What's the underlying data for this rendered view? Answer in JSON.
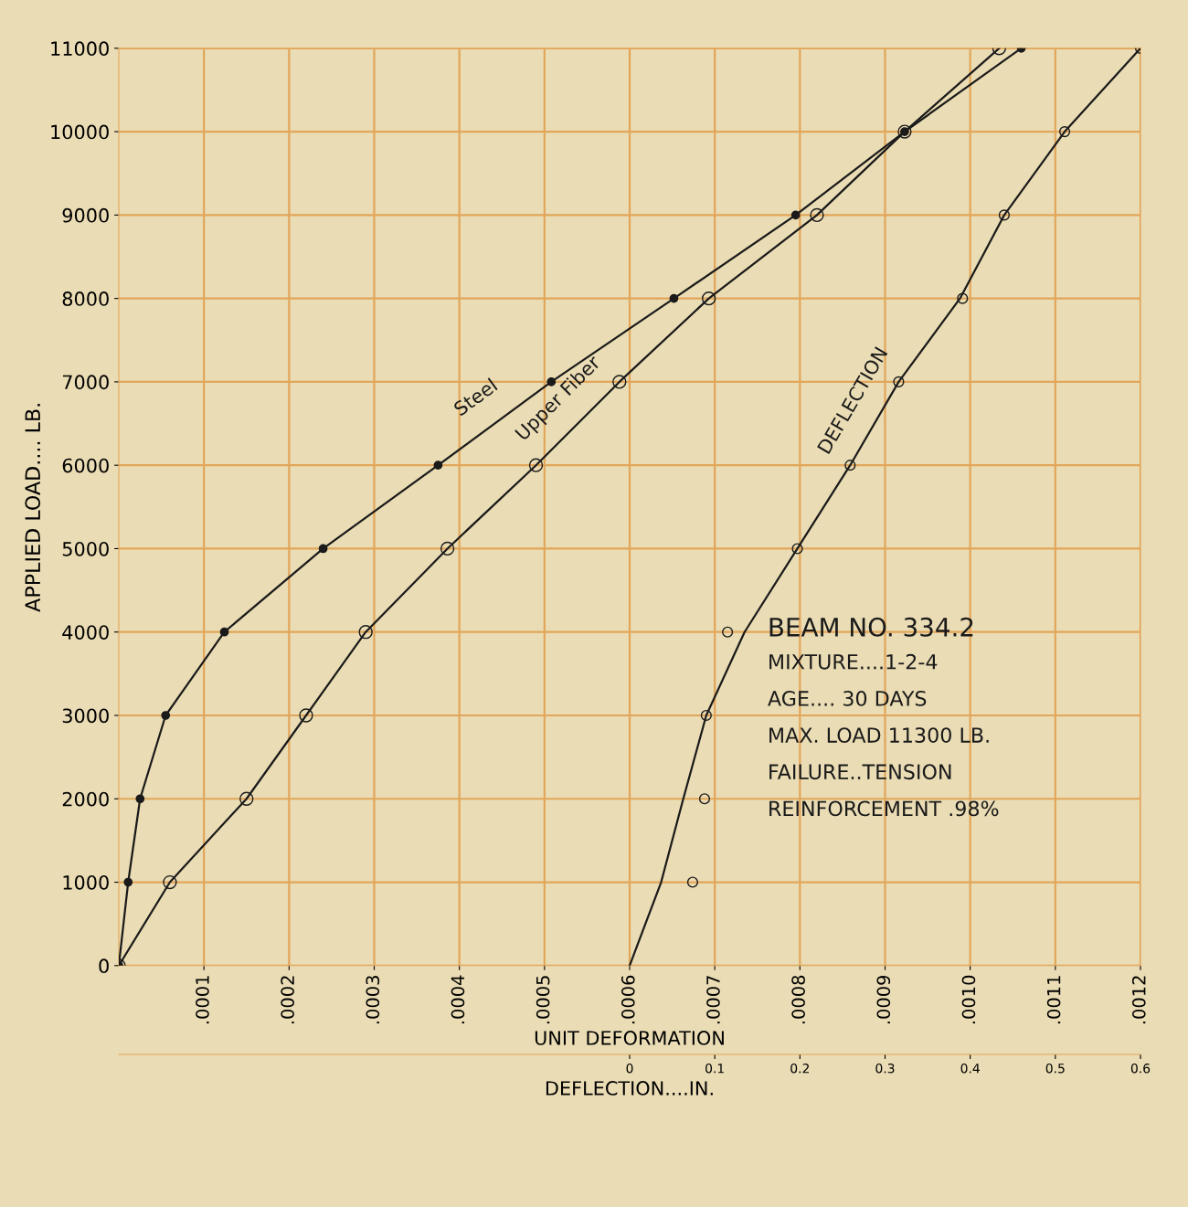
{
  "chart_data": {
    "type": "line",
    "ylabel": "APPLIED LOAD.... LB.",
    "xlabel": "UNIT DEFORMATION",
    "x2label": "DEFLECTION....IN.",
    "xlim": [
      0,
      0.0012
    ],
    "x2lim": [
      -0.6,
      0.6
    ],
    "ylim": [
      0,
      11000
    ],
    "xticks": [
      {
        "value": 0.0001,
        "label": ".0001"
      },
      {
        "value": 0.0002,
        "label": ".0002"
      },
      {
        "value": 0.0003,
        "label": ".0003"
      },
      {
        "value": 0.0004,
        "label": ".0004"
      },
      {
        "value": 0.0005,
        "label": ".0005"
      },
      {
        "value": 0.0006,
        "label": ".0006"
      },
      {
        "value": 0.0007,
        "label": ".0007"
      },
      {
        "value": 0.0008,
        "label": ".0008"
      },
      {
        "value": 0.0009,
        "label": ".0009"
      },
      {
        "value": 0.001,
        "label": ".0010"
      },
      {
        "value": 0.0011,
        "label": ".0011"
      },
      {
        "value": 0.0012,
        "label": ".0012"
      }
    ],
    "x2ticks": [
      0,
      0.1,
      0.2,
      0.3,
      0.4,
      0.5,
      0.6
    ],
    "yticks": [
      0,
      1000,
      2000,
      3000,
      4000,
      5000,
      6000,
      7000,
      8000,
      9000,
      10000,
      11000
    ],
    "grid": true,
    "legend": false,
    "marker": "circle",
    "line_style": "solid",
    "series": [
      {
        "name": "Steel",
        "color": "#1a1a1a",
        "x": [
          0,
          1.1e-05,
          2.5e-05,
          5.5e-05,
          0.000124,
          0.00024,
          0.000375,
          0.000508,
          0.000652,
          0.000795,
          0.000923,
          0.00106
        ],
        "values": [
          0,
          1000,
          2000,
          3000,
          4000,
          5000,
          6000,
          7000,
          8000,
          9000,
          10000,
          11000
        ]
      },
      {
        "name": "Upper Fiber",
        "color": "#1a1a1a",
        "x": [
          0,
          6e-05,
          0.00015,
          0.00022,
          0.00029,
          0.000386,
          0.00049,
          0.000588,
          0.000693,
          0.00082,
          0.000923,
          0.001034
        ],
        "values": [
          0,
          1000,
          2000,
          3000,
          4000,
          5000,
          6000,
          7000,
          8000,
          9000,
          10000,
          11000
        ]
      },
      {
        "name": "DEFLECTION",
        "axis": "x2",
        "marker": "none",
        "color": "#1a1a1a",
        "x": [
          0,
          0.037,
          0.063,
          0.09,
          0.135,
          0.197,
          0.259,
          0.316,
          0.388,
          0.44,
          0.511,
          0.6
        ],
        "values": [
          0,
          1000,
          2000,
          3000,
          4000,
          5000,
          6000,
          7000,
          8000,
          9000,
          10000,
          11000
        ]
      },
      {
        "type": "scatter",
        "axis": "x2",
        "color": "#1a1a1a",
        "x": [
          0.074,
          0.088,
          0.09,
          0.115,
          0.197,
          0.259,
          0.316,
          0.391,
          0.44,
          0.511,
          0.6
        ],
        "values": [
          1000,
          2000,
          3000,
          4000,
          5000,
          6000,
          7000,
          8000,
          9000,
          10000,
          11000
        ]
      }
    ],
    "annotations": [
      "BEAM NO. 334.2",
      "MIXTURE....1-2-4",
      "AGE.... 30 DAYS",
      "MAX. LOAD 11300 LB.",
      "FAILURE..TENSION",
      "REINFORCEMENT .98%"
    ]
  }
}
